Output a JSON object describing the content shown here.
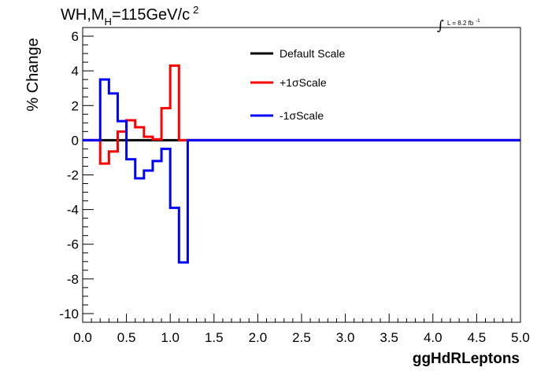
{
  "title": {
    "part1": "WH,M",
    "sub": "H",
    "part2": "=115GeV/c",
    "sup": "2"
  },
  "luminosity": {
    "integral": "∫",
    "text": "L = 8.2 fb",
    "sup": "-1"
  },
  "chart_data": {
    "type": "line",
    "xlabel": "ggHdRLeptons",
    "ylabel": "% Change",
    "xlim": [
      0.0,
      5.0
    ],
    "ylim": [
      -10.5,
      6.5
    ],
    "x_ticks": [
      "0.0",
      "0.5",
      "1.0",
      "1.5",
      "2.0",
      "2.5",
      "3.0",
      "3.5",
      "4.0",
      "4.5",
      "5.0"
    ],
    "y_ticks": [
      "-10",
      "-8",
      "-6",
      "-4",
      "-2",
      "0",
      "2",
      "4",
      "6"
    ],
    "bin_edges": [
      0.0,
      0.1,
      0.2,
      0.3,
      0.4,
      0.5,
      0.6,
      0.7,
      0.8,
      0.9,
      1.0,
      1.1,
      1.2,
      5.0
    ],
    "series": [
      {
        "name": "Default Scale",
        "color": "#000000",
        "values": [
          0,
          0,
          0,
          0,
          0,
          0,
          0,
          0,
          0,
          0,
          0,
          0,
          0
        ]
      },
      {
        "name": "+1σScale",
        "color": "#ff0000",
        "values": [
          0,
          0,
          -1.35,
          -0.65,
          0.5,
          1.15,
          0.75,
          0.2,
          0.05,
          1.85,
          4.3,
          0,
          0
        ]
      },
      {
        "name": "-1σScale",
        "color": "#0000ff",
        "values": [
          0,
          0,
          3.5,
          2.7,
          1.1,
          -1.1,
          -2.2,
          -1.75,
          -1.2,
          -0.5,
          -3.9,
          -7.05,
          0
        ]
      }
    ],
    "legend": "top-center",
    "grid": false
  }
}
